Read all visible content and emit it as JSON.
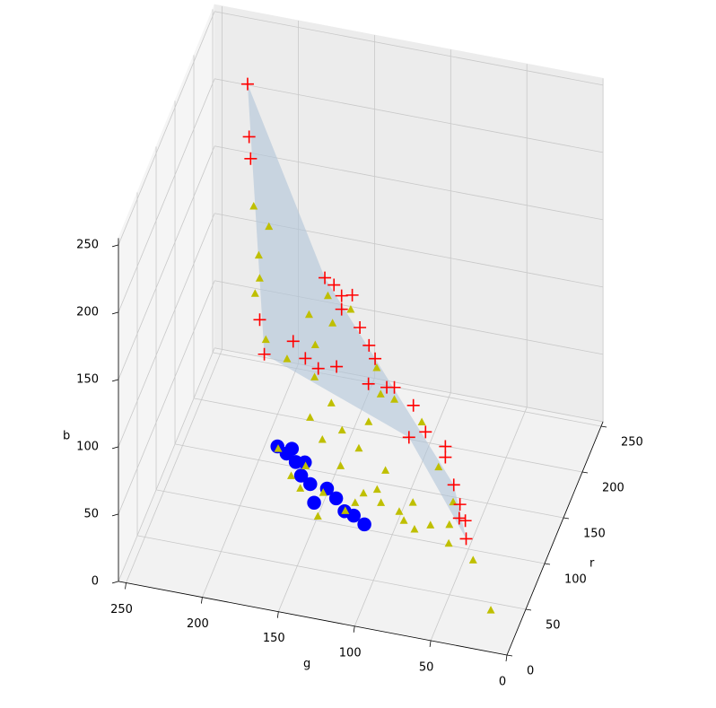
{
  "chart_data": {
    "type": "scatter3d",
    "xlabel": "r",
    "ylabel": "g",
    "zlabel": "b",
    "xlim": [
      0,
      255
    ],
    "ylim": [
      0,
      255
    ],
    "zlim": [
      0,
      255
    ],
    "xticks": [
      0,
      50,
      100,
      150,
      200,
      250
    ],
    "yticks": [
      0,
      50,
      100,
      150,
      200,
      250
    ],
    "zticks": [
      0,
      50,
      100,
      150,
      200,
      250
    ],
    "grid": true,
    "surface": {
      "color": "#b0c4d8",
      "r": [
        181,
        200,
        150,
        110,
        120,
        100
      ],
      "g": [
        215,
        169,
        72,
        54,
        94,
        184
      ],
      "b": [
        255,
        108,
        9,
        0,
        60,
        116
      ]
    },
    "series": [
      {
        "marker": "circle",
        "color": "#0000ff",
        "r": [
          50,
          50,
          50,
          40,
          40,
          30,
          40,
          40,
          30,
          30,
          30,
          60,
          50
        ],
        "g": [
          163,
          157,
          151,
          145,
          139,
          134,
          128,
          122,
          114,
          108,
          101,
          156,
          145
        ],
        "b": [
          86,
          82,
          77,
          75,
          70,
          64,
          69,
          63,
          62,
          60,
          55,
          79,
          78
        ]
      },
      {
        "marker": "triangle",
        "color": "#bfbf00",
        "r": [
          181,
          181,
          150,
          120,
          120,
          100,
          120,
          130,
          200,
          180,
          150,
          200,
          180,
          150,
          150,
          150,
          150,
          120,
          110,
          80,
          30,
          100,
          80,
          100,
          80,
          80,
          60,
          110,
          60,
          90,
          70,
          70,
          70,
          70,
          80,
          80,
          90,
          60,
          80,
          50,
          50,
          60,
          50,
          60,
          50,
          40,
          40
        ],
        "g": [
          211,
          201,
          200,
          192,
          195,
          183,
          174,
          158,
          167,
          159,
          167,
          152,
          130,
          120,
          111,
          93,
          82,
          65,
          65,
          42,
          18,
          151,
          149,
          140,
          128,
          117,
          136,
          118,
          124,
          102,
          100,
          85,
          78,
          88,
          70,
          58,
          84,
          109,
          105,
          112,
          133,
          165,
          154,
          147,
          148,
          134,
          116
        ],
        "b": [
          165,
          152,
          152,
          157,
          145,
          127,
          101,
          108,
          95,
          90,
          115,
          88,
          63,
          66,
          64,
          51,
          20,
          18,
          8,
          7,
          9,
          106,
          90,
          89,
          85,
          74,
          90,
          73,
          73,
          54,
          44,
          34,
          29,
          40,
          27,
          16,
          34,
          56,
          46,
          55,
          58,
          77,
          66,
          68,
          58,
          47,
          55
        ]
      },
      {
        "marker": "plus",
        "color": "#ff0000",
        "r": [
          181,
          181,
          181,
          100,
          100,
          120,
          120,
          200,
          200,
          200,
          200,
          200,
          200,
          200,
          130,
          130,
          150,
          150,
          160,
          120,
          160,
          160,
          160,
          150,
          130,
          120,
          110,
          120,
          200,
          150
        ],
        "g": [
          215,
          214,
          213,
          187,
          184,
          170,
          162,
          169,
          163,
          151,
          158,
          146,
          140,
          136,
          156,
          144,
          128,
          111,
          101,
          94,
          93,
          80,
          80,
          72,
          63,
          57,
          54,
          61,
          158,
          116
        ],
        "b": [
          255,
          216,
          200,
          141,
          116,
          115,
          104,
          108,
          104,
          99,
          87,
          76,
          64,
          55,
          91,
          95,
          72,
          73,
          55,
          60,
          37,
          29,
          21,
          9,
          10,
          6,
          0,
          7,
          97,
          72
        ]
      }
    ]
  }
}
